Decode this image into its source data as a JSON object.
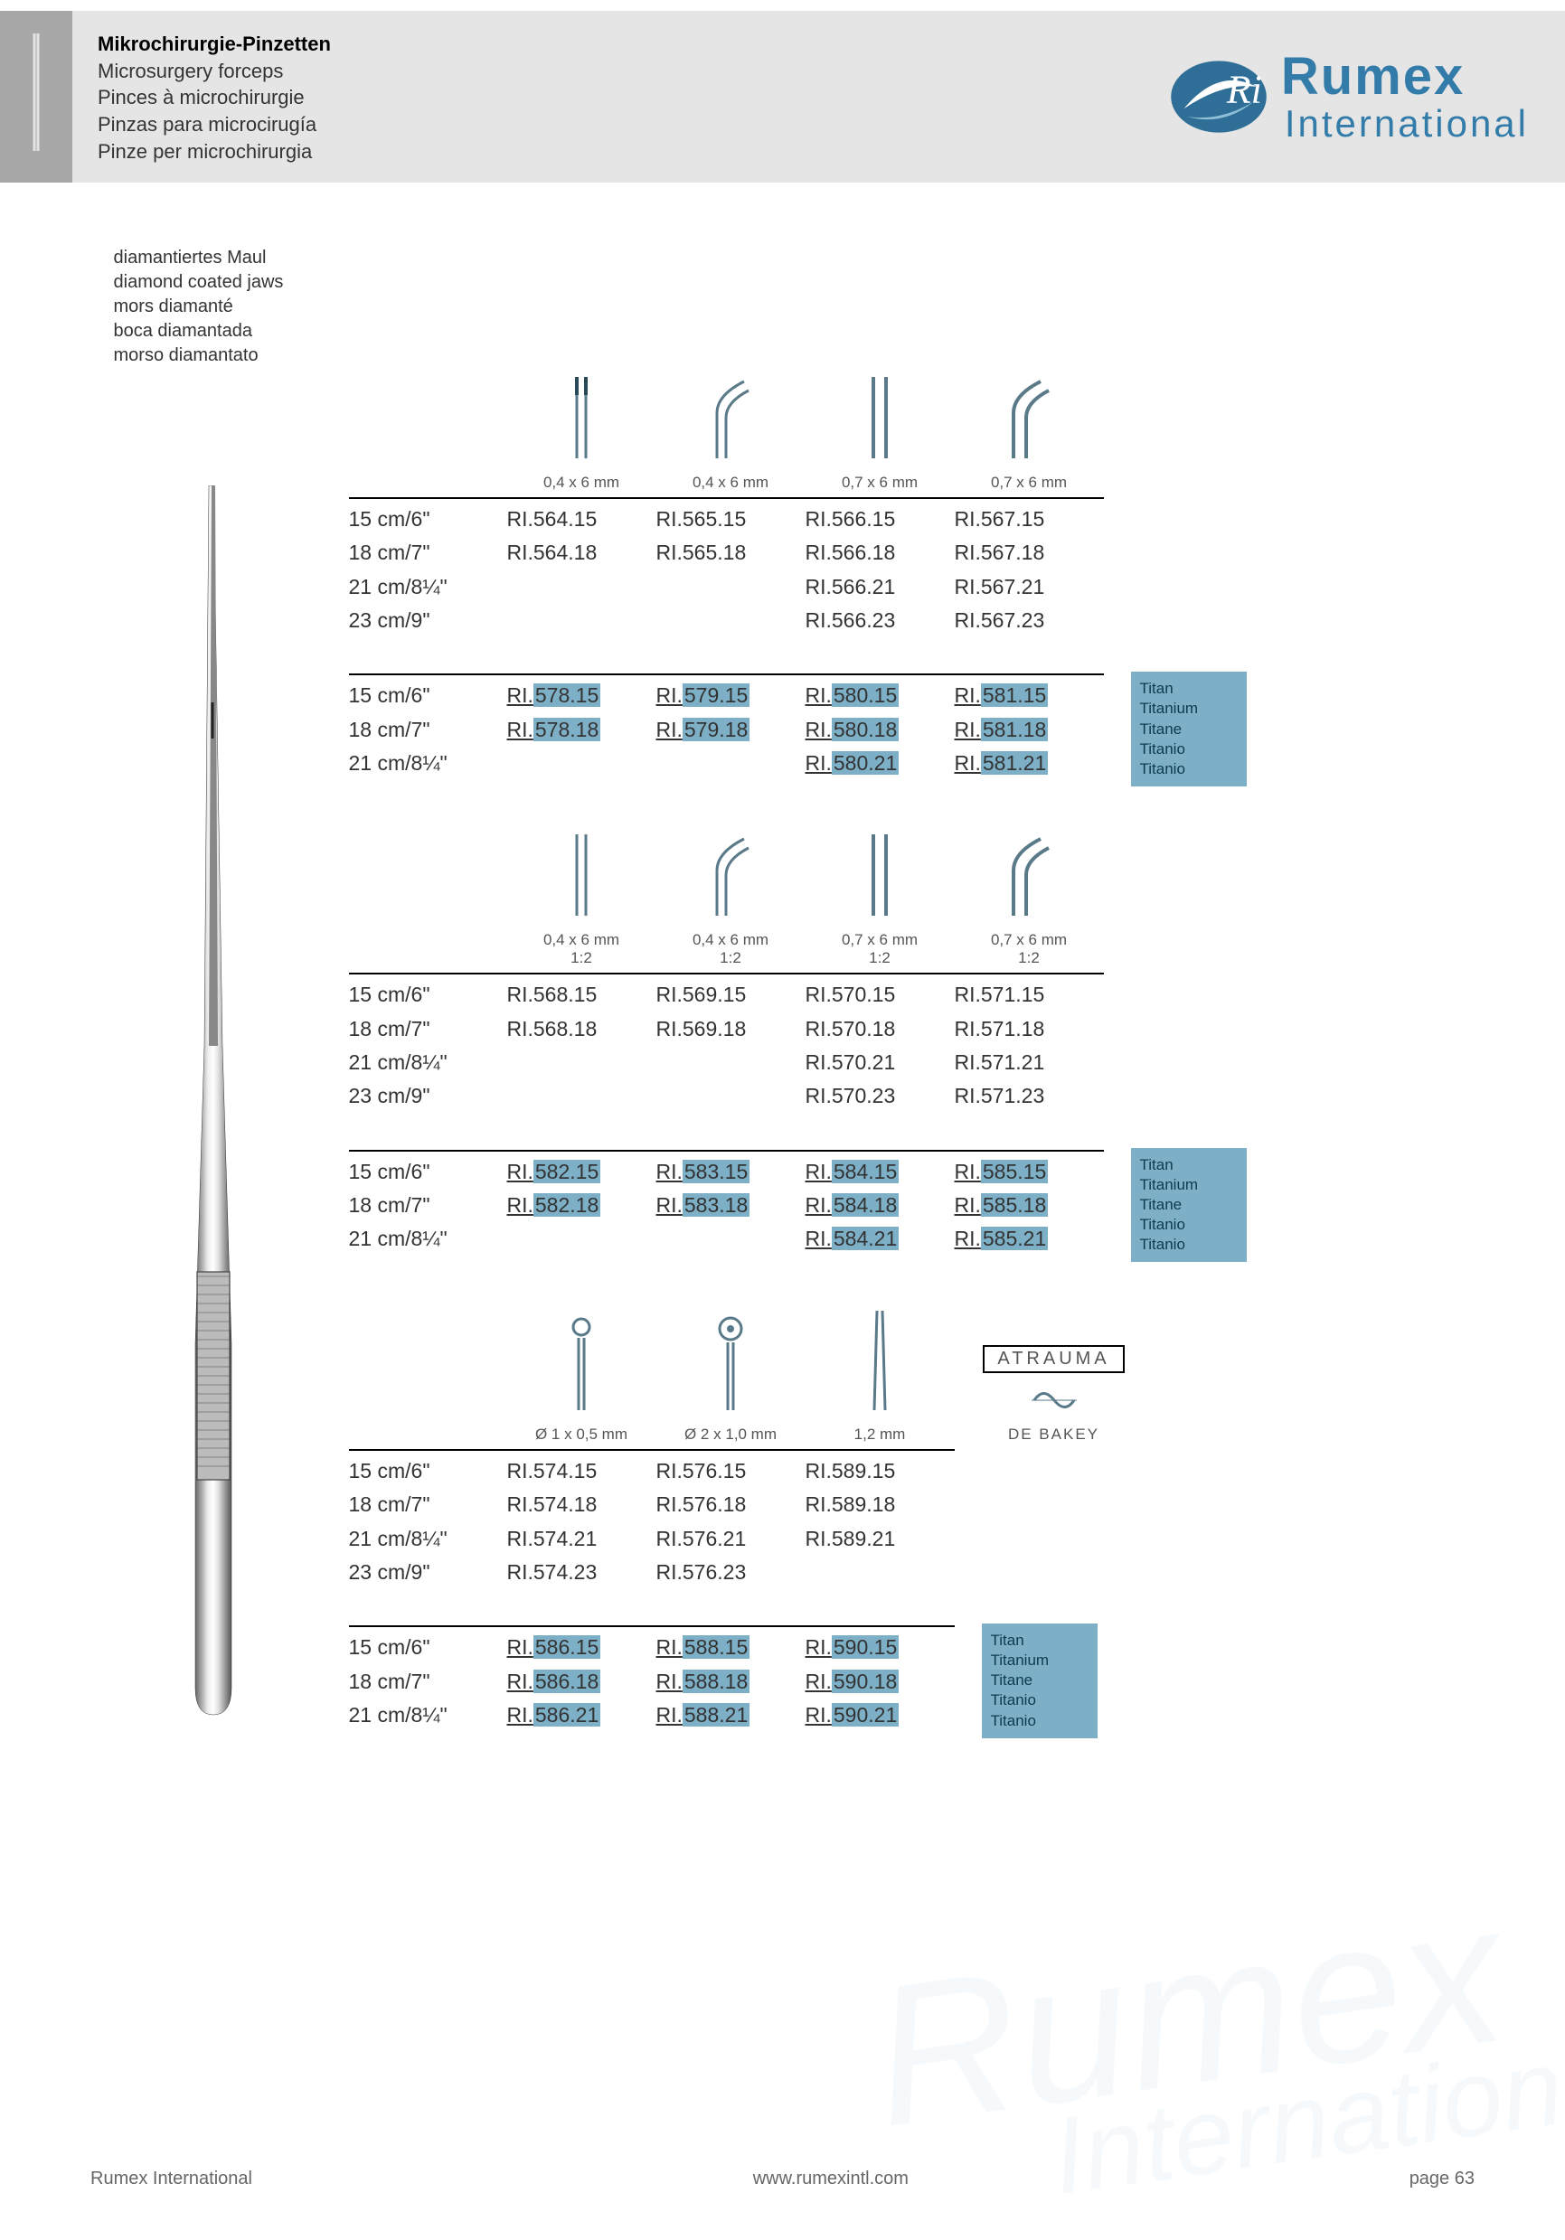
{
  "header": {
    "titles": [
      "Mikrochirurgie-Pinzetten",
      "Microsurgery forceps",
      "Pinces à microchirurgie",
      "Pinzas para microcirugía",
      "Pinze per microchirurgia"
    ],
    "brand": "Rumex",
    "brand_sub": "International"
  },
  "jawnote": [
    "diamantiertes Maul",
    "diamond coated jaws",
    "mors diamanté",
    "boca diamantada",
    "morso diamantato"
  ],
  "sizes4": [
    "15 cm/6\"",
    "18 cm/7\"",
    "21 cm/8¼\"",
    "23 cm/9\""
  ],
  "sizes3": [
    "15 cm/6\"",
    "18 cm/7\"",
    "21 cm/8¼\""
  ],
  "section1": {
    "spec_labels": [
      "0,4 x 6 mm",
      "0,4 x 6 mm",
      "0,7 x 6 mm",
      "0,7 x 6 mm"
    ],
    "rows": [
      [
        "RI.564.15",
        "RI.565.15",
        "RI.566.15",
        "RI.567.15"
      ],
      [
        "RI.564.18",
        "RI.565.18",
        "RI.566.18",
        "RI.567.18"
      ],
      [
        "",
        "",
        "RI.566.21",
        "RI.567.21"
      ],
      [
        "",
        "",
        "RI.566.23",
        "RI.567.23"
      ]
    ],
    "titan_rows": [
      [
        "RI.578.15",
        "RI.579.15",
        "RI.580.15",
        "RI.581.15"
      ],
      [
        "RI.578.18",
        "RI.579.18",
        "RI.580.18",
        "RI.581.18"
      ],
      [
        "",
        "",
        "RI.580.21",
        "RI.581.21"
      ]
    ]
  },
  "section2": {
    "spec_labels": [
      "0,4 x 6 mm",
      "0,4 x 6 mm",
      "0,7 x 6 mm",
      "0,7 x 6 mm"
    ],
    "spec_sub": "1:2",
    "rows": [
      [
        "RI.568.15",
        "RI.569.15",
        "RI.570.15",
        "RI.571.15"
      ],
      [
        "RI.568.18",
        "RI.569.18",
        "RI.570.18",
        "RI.571.18"
      ],
      [
        "",
        "",
        "RI.570.21",
        "RI.571.21"
      ],
      [
        "",
        "",
        "RI.570.23",
        "RI.571.23"
      ]
    ],
    "titan_rows": [
      [
        "RI.582.15",
        "RI.583.15",
        "RI.584.15",
        "RI.585.15"
      ],
      [
        "RI.582.18",
        "RI.583.18",
        "RI.584.18",
        "RI.585.18"
      ],
      [
        "",
        "",
        "RI.584.21",
        "RI.585.21"
      ]
    ]
  },
  "section3": {
    "spec_labels": [
      "Ø 1 x 0,5 mm",
      "Ø 2 x 1,0 mm",
      "1,2 mm"
    ],
    "atrauma": "ATRAUMA",
    "debakey": "DE BAKEY",
    "rows": [
      [
        "RI.574.15",
        "RI.576.15",
        "RI.589.15"
      ],
      [
        "RI.574.18",
        "RI.576.18",
        "RI.589.18"
      ],
      [
        "RI.574.21",
        "RI.576.21",
        "RI.589.21"
      ],
      [
        "RI.574.23",
        "RI.576.23",
        ""
      ]
    ],
    "titan_rows": [
      [
        "RI.586.15",
        "RI.588.15",
        "RI.590.15"
      ],
      [
        "RI.586.18",
        "RI.588.18",
        "RI.590.18"
      ],
      [
        "RI.586.21",
        "RI.588.21",
        "RI.590.21"
      ]
    ]
  },
  "titan_labels": [
    "Titan",
    "Titanium",
    "Titane",
    "Titanio",
    "Titanio"
  ],
  "footer": {
    "left": "Rumex International",
    "center": "www.rumexintl.com",
    "right": "page 63"
  },
  "colors": {
    "header_bg": "#e5e5e5",
    "blue": "#337ca9",
    "highlight": "#7db0c7"
  }
}
